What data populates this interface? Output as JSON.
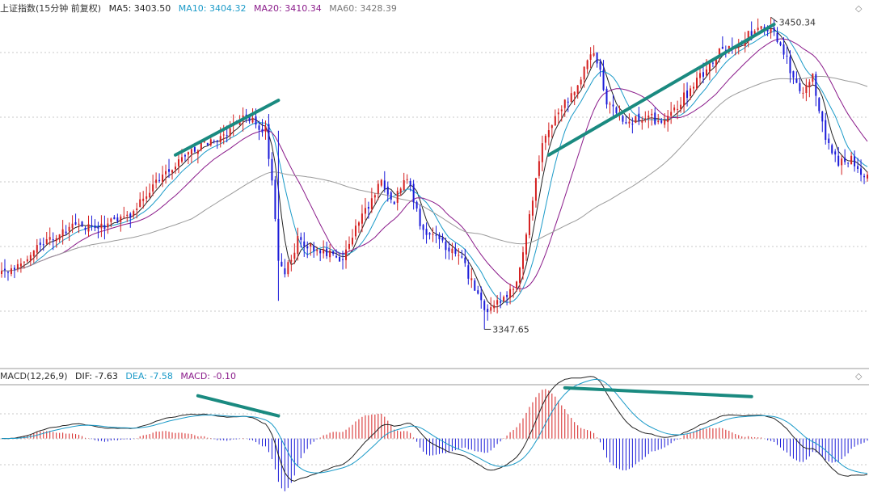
{
  "colors": {
    "up": "#d42020",
    "down": "#1a1ad8",
    "ma5": "#222222",
    "ma10": "#1a9ac8",
    "ma20": "#8a1a8a",
    "ma60": "#9a9a9a",
    "trend": "#1a8a80",
    "grid": "#c8c8c8",
    "text": "#333333"
  },
  "legend_top": {
    "title": "上证指数(15分钟 前复权)",
    "ma5": "MA5: 3403.50",
    "ma10": "MA10: 3404.32",
    "ma20": "MA20: 3410.34",
    "ma60": "MA60: 3428.39"
  },
  "legend_bottom": {
    "macd_title": "MACD(12,26,9)",
    "dif": "DIF: -7.63",
    "dea": "DEA: -7.58",
    "macd": "MACD: -0.10"
  },
  "icons": {
    "top": "diamond-icon",
    "bottom": "diamond-icon",
    "glyph": "◇"
  },
  "chart_data": [
    {
      "type": "candlestick",
      "title": "上证指数(15分钟 前复权)",
      "grid": true,
      "ylim": [
        3335,
        3456
      ],
      "annotations": [
        {
          "label": "3450.34",
          "x": 239,
          "y": 3450.34
        },
        {
          "label": "3347.65",
          "x": 150,
          "y": 3347.65
        }
      ],
      "anchors": [
        [
          0,
          3366
        ],
        [
          5,
          3369
        ],
        [
          12,
          3376
        ],
        [
          22,
          3381
        ],
        [
          32,
          3382
        ],
        [
          40,
          3386
        ],
        [
          48,
          3396
        ],
        [
          58,
          3406
        ],
        [
          68,
          3411
        ],
        [
          76,
          3418
        ],
        [
          82,
          3413
        ],
        [
          84,
          3397
        ],
        [
          86,
          3371
        ],
        [
          88,
          3366
        ],
        [
          92,
          3377
        ],
        [
          98,
          3373
        ],
        [
          106,
          3371
        ],
        [
          112,
          3385
        ],
        [
          118,
          3396
        ],
        [
          122,
          3390
        ],
        [
          126,
          3398
        ],
        [
          130,
          3382
        ],
        [
          136,
          3376
        ],
        [
          142,
          3373
        ],
        [
          146,
          3363
        ],
        [
          150,
          3354
        ],
        [
          156,
          3358
        ],
        [
          160,
          3362
        ],
        [
          164,
          3385
        ],
        [
          168,
          3409
        ],
        [
          174,
          3420
        ],
        [
          180,
          3430
        ],
        [
          184,
          3440
        ],
        [
          188,
          3423
        ],
        [
          194,
          3416
        ],
        [
          200,
          3418
        ],
        [
          206,
          3415
        ],
        [
          212,
          3424
        ],
        [
          218,
          3432
        ],
        [
          224,
          3440
        ],
        [
          230,
          3443
        ],
        [
          236,
          3447
        ],
        [
          240,
          3445
        ],
        [
          244,
          3436
        ],
        [
          248,
          3425
        ],
        [
          252,
          3431
        ],
        [
          254,
          3420
        ],
        [
          256,
          3411
        ],
        [
          260,
          3402
        ],
        [
          264,
          3404
        ],
        [
          268,
          3397
        ],
        [
          269,
          3399
        ]
      ],
      "special_candles": [
        {
          "x": 150,
          "low": 3347.65
        },
        {
          "x": 239,
          "high": 3450.34
        },
        {
          "x": 86,
          "high": 3413,
          "low": 3357
        }
      ],
      "trendlines": [
        {
          "from": [
            54,
            3405
          ],
          "to": [
            86,
            3423
          ]
        },
        {
          "from": [
            170,
            3405
          ],
          "to": [
            240,
            3448
          ]
        }
      ],
      "moving_averages": [
        "MA5",
        "MA10",
        "MA20",
        "MA60"
      ]
    },
    {
      "type": "macd",
      "title": "MACD(12,26,9)",
      "ylim": [
        -13,
        14
      ],
      "series": [
        "DIF",
        "DEA",
        "MACD"
      ],
      "trendlines": [
        {
          "from": [
            61,
            10.2
          ],
          "to": [
            86,
            5.4
          ]
        },
        {
          "from": [
            175,
            12.1
          ],
          "to": [
            233,
            10.0
          ]
        }
      ]
    }
  ]
}
